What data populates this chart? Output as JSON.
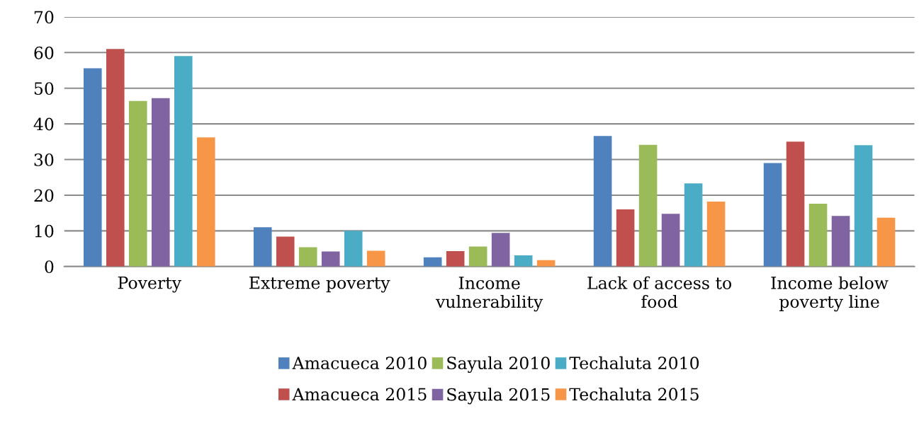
{
  "chart_data": {
    "type": "bar",
    "categories": [
      "Poverty",
      "Extreme poverty",
      "Income\nvulnerability",
      "Lack of access to\nfood",
      "Income below\npoverty line"
    ],
    "series": [
      {
        "name": "Amacueca 2010",
        "color": "#4f81bd",
        "values": [
          55.6,
          11,
          2.6,
          36.6,
          29
        ]
      },
      {
        "name": "Amacueca 2015",
        "color": "#c0504d",
        "values": [
          61,
          8.4,
          4.3,
          16,
          35
        ]
      },
      {
        "name": "Sayula 2010",
        "color": "#9bbb59",
        "values": [
          46.4,
          5.4,
          5.6,
          34.1,
          17.6
        ]
      },
      {
        "name": "Sayula 2015",
        "color": "#8064a2",
        "values": [
          47.2,
          4.2,
          9.4,
          14.8,
          14.2
        ]
      },
      {
        "name": "Techaluta 2010",
        "color": "#4bacc6",
        "values": [
          59,
          10,
          3.1,
          23.3,
          34
        ]
      },
      {
        "name": "Techaluta 2015",
        "color": "#f79646",
        "values": [
          36.2,
          4.4,
          1.8,
          18.2,
          13.7
        ]
      }
    ],
    "ylim": [
      0,
      70
    ],
    "yticks": [
      0,
      10,
      20,
      30,
      40,
      50,
      60,
      70
    ],
    "grid": "y",
    "legend": "bottom"
  }
}
